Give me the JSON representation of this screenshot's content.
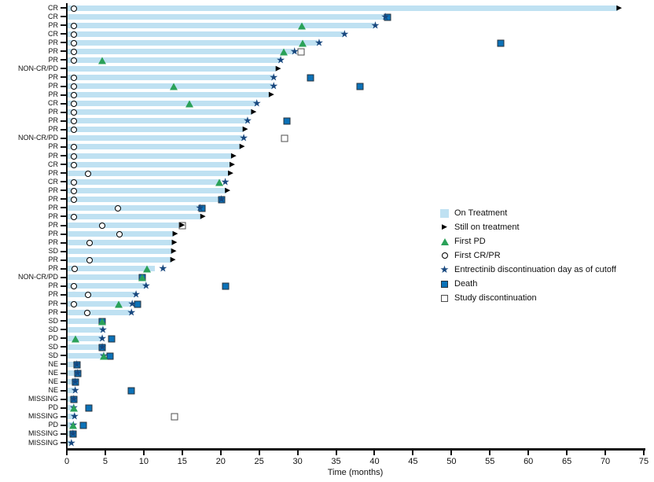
{
  "colors": {
    "bar": "#BFE1F2",
    "star": "#17477E",
    "triangle": "#2AA158",
    "death_fill": "#0C72B8",
    "death_border": "#29333D",
    "opensq_border": "#4D4D4D",
    "arrow": "#000000",
    "axis": "#111111"
  },
  "chart_data": {
    "type": "bar",
    "subtype": "swimmer-plot",
    "title": "",
    "xlabel": "Time (months)",
    "ylabel": "",
    "xlim": [
      0,
      75
    ],
    "x_ticks": [
      0,
      5,
      10,
      15,
      20,
      25,
      30,
      35,
      40,
      45,
      50,
      55,
      60,
      65,
      70,
      75
    ],
    "grid": false,
    "legend_position": "right-middle",
    "legend": [
      {
        "marker": "bar",
        "label": "On Treatment"
      },
      {
        "marker": "arrow",
        "label": "Still on treatment"
      },
      {
        "marker": "triangle",
        "label": "First PD"
      },
      {
        "marker": "circle",
        "label": "First CR/PR"
      },
      {
        "marker": "star",
        "label": "Entrectinib discontinuation day as of cutoff"
      },
      {
        "marker": "death",
        "label": "Death"
      },
      {
        "marker": "opensq",
        "label": "Study discontinuation"
      }
    ],
    "marker_meanings": {
      "bar": "On Treatment duration (months)",
      "arrow": "Still on treatment",
      "triangle": "First PD",
      "circle": "First CR/PR",
      "star": "Entrectinib discontinuation day as of cutoff",
      "death": "Death",
      "opensq": "Study discontinuation"
    },
    "rows": [
      {
        "label": "CR",
        "bar": 71.6,
        "markers": [
          [
            "circle",
            0.9
          ],
          [
            "arrow",
            71.8
          ]
        ]
      },
      {
        "label": "CR",
        "bar": 41.5,
        "markers": [
          [
            "star",
            41.4
          ],
          [
            "death",
            41.7
          ]
        ]
      },
      {
        "label": "PR",
        "bar": 40.0,
        "markers": [
          [
            "circle",
            0.9
          ],
          [
            "triangle",
            30.6
          ],
          [
            "star",
            40.1
          ]
        ]
      },
      {
        "label": "CR",
        "bar": 36.0,
        "markers": [
          [
            "circle",
            0.9
          ],
          [
            "star",
            36.1
          ]
        ]
      },
      {
        "label": "PR",
        "bar": 32.6,
        "markers": [
          [
            "circle",
            0.9
          ],
          [
            "triangle",
            30.7
          ],
          [
            "star",
            32.8
          ],
          [
            "death",
            56.4
          ]
        ]
      },
      {
        "label": "PR",
        "bar": 29.4,
        "markers": [
          [
            "circle",
            0.9
          ],
          [
            "triangle",
            28.2
          ],
          [
            "star",
            29.6
          ],
          [
            "opensq",
            30.5
          ]
        ]
      },
      {
        "label": "PR",
        "bar": 27.7,
        "markers": [
          [
            "circle",
            0.9
          ],
          [
            "triangle",
            4.6
          ],
          [
            "star",
            27.8
          ]
        ]
      },
      {
        "label": "NON-CR/PD",
        "bar": 27.2,
        "markers": [
          [
            "arrow",
            27.5
          ]
        ]
      },
      {
        "label": "PR",
        "bar": 26.8,
        "markers": [
          [
            "circle",
            0.9
          ],
          [
            "star",
            26.9
          ],
          [
            "death",
            31.7
          ]
        ]
      },
      {
        "label": "PR",
        "bar": 26.7,
        "markers": [
          [
            "circle",
            0.9
          ],
          [
            "triangle",
            13.9
          ],
          [
            "star",
            26.9
          ],
          [
            "death",
            38.1
          ]
        ]
      },
      {
        "label": "PR",
        "bar": 26.4,
        "markers": [
          [
            "circle",
            0.9
          ],
          [
            "arrow",
            26.6
          ]
        ]
      },
      {
        "label": "CR",
        "bar": 24.6,
        "markers": [
          [
            "circle",
            0.9
          ],
          [
            "triangle",
            15.9
          ],
          [
            "star",
            24.7
          ]
        ]
      },
      {
        "label": "PR",
        "bar": 24.1,
        "markers": [
          [
            "circle",
            0.9
          ],
          [
            "arrow",
            24.3
          ]
        ]
      },
      {
        "label": "PR",
        "bar": 23.4,
        "markers": [
          [
            "circle",
            0.9
          ],
          [
            "star",
            23.5
          ],
          [
            "death",
            28.6
          ]
        ]
      },
      {
        "label": "PR",
        "bar": 23.0,
        "markers": [
          [
            "circle",
            0.9
          ],
          [
            "arrow",
            23.2
          ]
        ]
      },
      {
        "label": "NON-CR/PD",
        "bar": 22.8,
        "markers": [
          [
            "star",
            23.0
          ],
          [
            "opensq",
            28.3
          ]
        ]
      },
      {
        "label": "PR",
        "bar": 22.6,
        "markers": [
          [
            "circle",
            0.9
          ],
          [
            "arrow",
            22.8
          ]
        ]
      },
      {
        "label": "PR",
        "bar": 21.5,
        "markers": [
          [
            "circle",
            0.9
          ],
          [
            "arrow",
            21.7
          ]
        ]
      },
      {
        "label": "CR",
        "bar": 21.3,
        "markers": [
          [
            "circle",
            0.9
          ],
          [
            "arrow",
            21.5
          ]
        ]
      },
      {
        "label": "PR",
        "bar": 21.1,
        "markers": [
          [
            "circle",
            2.8
          ],
          [
            "arrow",
            21.3
          ]
        ]
      },
      {
        "label": "CR",
        "bar": 20.0,
        "markers": [
          [
            "circle",
            0.9
          ],
          [
            "triangle",
            19.8
          ],
          [
            "star",
            20.6
          ]
        ]
      },
      {
        "label": "PR",
        "bar": 20.7,
        "markers": [
          [
            "circle",
            0.9
          ],
          [
            "arrow",
            20.9
          ]
        ]
      },
      {
        "label": "PR",
        "bar": 20.0,
        "markers": [
          [
            "circle",
            0.9
          ],
          [
            "star",
            20.1
          ],
          [
            "death",
            20.1
          ]
        ]
      },
      {
        "label": "PR",
        "bar": 17.3,
        "markers": [
          [
            "circle",
            6.6
          ],
          [
            "star",
            17.3
          ],
          [
            "death",
            17.6
          ]
        ]
      },
      {
        "label": "PR",
        "bar": 17.5,
        "markers": [
          [
            "circle",
            0.9
          ],
          [
            "arrow",
            17.7
          ]
        ]
      },
      {
        "label": "PR",
        "bar": 14.8,
        "markers": [
          [
            "circle",
            4.6
          ],
          [
            "opensq",
            15.0
          ],
          [
            "arrow",
            15.0
          ]
        ]
      },
      {
        "label": "PR",
        "bar": 13.9,
        "markers": [
          [
            "circle",
            6.8
          ],
          [
            "arrow",
            14.1
          ]
        ]
      },
      {
        "label": "PR",
        "bar": 13.8,
        "markers": [
          [
            "circle",
            3.0
          ],
          [
            "arrow",
            14.0
          ]
        ]
      },
      {
        "label": "SD",
        "bar": 13.7,
        "markers": [
          [
            "arrow",
            13.9
          ]
        ]
      },
      {
        "label": "PR",
        "bar": 13.6,
        "markers": [
          [
            "circle",
            3.0
          ],
          [
            "arrow",
            13.8
          ]
        ]
      },
      {
        "label": "PR",
        "bar": 11.4,
        "markers": [
          [
            "circle",
            1.0
          ],
          [
            "triangle",
            10.4
          ],
          [
            "star",
            12.5
          ]
        ]
      },
      {
        "label": "NON-CR/PD",
        "bar": 9.7,
        "markers": [
          [
            "death",
            9.85
          ],
          [
            "triangle",
            9.85
          ]
        ]
      },
      {
        "label": "PR",
        "bar": 10.2,
        "markers": [
          [
            "circle",
            0.9
          ],
          [
            "star",
            10.3
          ],
          [
            "death",
            20.6
          ]
        ]
      },
      {
        "label": "PR",
        "bar": 8.9,
        "markers": [
          [
            "circle",
            2.8
          ],
          [
            "star",
            9.0
          ]
        ]
      },
      {
        "label": "PR",
        "bar": 8.3,
        "markers": [
          [
            "circle",
            0.9
          ],
          [
            "triangle",
            6.7
          ],
          [
            "star",
            8.5
          ],
          [
            "death",
            9.2
          ]
        ]
      },
      {
        "label": "PR",
        "bar": 8.2,
        "markers": [
          [
            "circle",
            2.7
          ],
          [
            "star",
            8.4
          ]
        ]
      },
      {
        "label": "SD",
        "bar": 4.5,
        "markers": [
          [
            "death",
            4.6
          ],
          [
            "triangle",
            4.6
          ]
        ]
      },
      {
        "label": "SD",
        "bar": 4.6,
        "markers": [
          [
            "star",
            4.7
          ]
        ]
      },
      {
        "label": "PD",
        "bar": 4.5,
        "markers": [
          [
            "triangle",
            1.1
          ],
          [
            "star",
            4.6
          ],
          [
            "death",
            5.8
          ]
        ]
      },
      {
        "label": "SD",
        "bar": 4.5,
        "markers": [
          [
            "death",
            4.6
          ],
          [
            "star",
            4.6
          ]
        ]
      },
      {
        "label": "SD",
        "bar": 4.7,
        "markers": [
          [
            "star",
            4.8
          ],
          [
            "triangle",
            4.8
          ],
          [
            "death",
            5.6
          ]
        ]
      },
      {
        "label": "NE",
        "bar": 1.2,
        "markers": [
          [
            "death",
            1.3
          ],
          [
            "star",
            1.3
          ]
        ]
      },
      {
        "label": "NE",
        "bar": 1.3,
        "markers": [
          [
            "death",
            1.4
          ],
          [
            "star",
            1.4
          ]
        ]
      },
      {
        "label": "NE",
        "bar": 1.0,
        "markers": [
          [
            "death",
            1.1
          ],
          [
            "star",
            1.1
          ]
        ]
      },
      {
        "label": "NE",
        "bar": 1.0,
        "markers": [
          [
            "star",
            1.1
          ],
          [
            "death",
            8.4
          ]
        ]
      },
      {
        "label": "MISSING",
        "bar": 0.8,
        "markers": [
          [
            "death",
            0.9
          ],
          [
            "star",
            0.9
          ]
        ]
      },
      {
        "label": "PD",
        "bar": 0.8,
        "markers": [
          [
            "star",
            0.9
          ],
          [
            "triangle",
            0.9
          ],
          [
            "death",
            2.9
          ]
        ]
      },
      {
        "label": "MISSING",
        "bar": 0.9,
        "markers": [
          [
            "star",
            1.0
          ],
          [
            "opensq",
            14.0
          ]
        ]
      },
      {
        "label": "PD",
        "bar": 0.7,
        "markers": [
          [
            "star",
            0.85
          ],
          [
            "triangle",
            0.85
          ],
          [
            "death",
            2.1
          ]
        ]
      },
      {
        "label": "MISSING",
        "bar": 0.6,
        "markers": [
          [
            "death",
            0.8
          ],
          [
            "star",
            0.8
          ]
        ]
      },
      {
        "label": "MISSING",
        "bar": 0.4,
        "markers": [
          [
            "star",
            0.6
          ]
        ]
      }
    ]
  }
}
